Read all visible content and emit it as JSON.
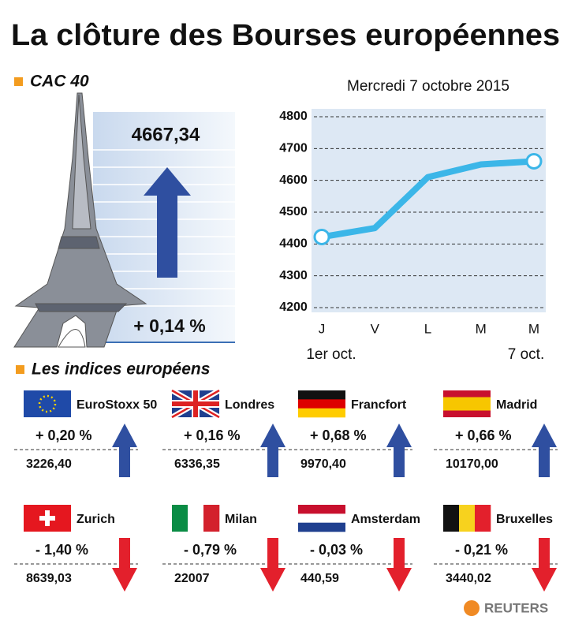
{
  "title": "La clôture des Bourses européennes",
  "cac40": {
    "label": "CAC 40",
    "value": "4667,34",
    "change": "+ 0,14 %"
  },
  "chart_data": {
    "type": "line",
    "subtitle": "Mercredi 7 octobre 2015",
    "categories": [
      "J",
      "V",
      "L",
      "M",
      "M"
    ],
    "date_labels": [
      "1er oct.",
      null,
      null,
      null,
      "7 oct."
    ],
    "values": [
      4422,
      4450,
      4610,
      4650,
      4660
    ],
    "color": "#3bb6e8",
    "ylim": [
      4200,
      4800
    ],
    "yticks": [
      4200,
      4300,
      4400,
      4500,
      4600,
      4700,
      4800
    ],
    "grid": true
  },
  "indices_title": "Les indices européens",
  "indices": [
    {
      "name": "EuroStoxx 50",
      "change": "+ 0,20 %",
      "value": "3226,40"
    },
    {
      "name": "Londres",
      "change": "+ 0,16 %",
      "value": "6336,35"
    },
    {
      "name": "Francfort",
      "change": "+ 0,68 %",
      "value": "9970,40"
    },
    {
      "name": "Madrid",
      "change": "+ 0,66 %",
      "value": "10170,00"
    },
    {
      "name": "Zurich",
      "change": "- 1,40 %",
      "value": "8639,03"
    },
    {
      "name": "Milan",
      "change": "- 0,79 %",
      "value": "22007"
    },
    {
      "name": "Amsterdam",
      "change": "- 0,03 %",
      "value": "440,59"
    },
    {
      "name": "Bruxelles",
      "change": "- 0,21 %",
      "value": "3440,02"
    }
  ],
  "source": "REUTERS"
}
